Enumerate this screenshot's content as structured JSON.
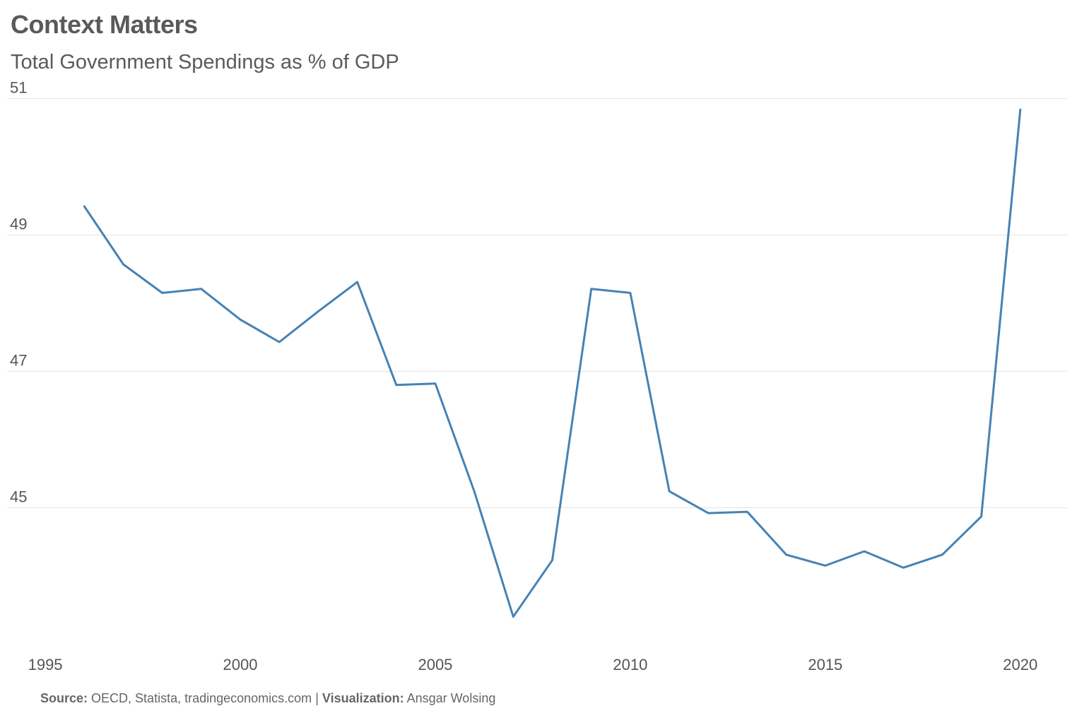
{
  "title": "Context Matters",
  "subtitle": "Total Government Spendings as % of GDP",
  "caption": {
    "source_label": "Source:",
    "source_text": "OECD, Statista, tradingeconomics.com",
    "separator": "|",
    "viz_label": "Visualization:",
    "viz_text": "Ansgar Wolsing"
  },
  "colors": {
    "line": "#4682b4",
    "grid": "#e3e3e3",
    "text": "#555555"
  },
  "chart_data": {
    "type": "line",
    "title": "Context Matters",
    "subtitle": "Total Government Spendings as % of GDP",
    "xlabel": "",
    "ylabel": "",
    "xlim": [
      1994.6,
      2021.2
    ],
    "ylim": [
      43.2,
      51.1
    ],
    "x_ticks": [
      1995,
      2000,
      2005,
      2010,
      2015,
      2020
    ],
    "x_tick_labels": [
      "1995",
      "2000",
      "2005",
      "2010",
      "2015",
      "2020"
    ],
    "y_ticks": [
      45,
      47,
      49,
      51
    ],
    "y_tick_labels": [
      "45",
      "47",
      "49",
      "51"
    ],
    "grid": true,
    "series": [
      {
        "name": "Total Government Spendings as % of GDP",
        "x": [
          1996,
          1997,
          1998,
          1999,
          2000,
          2001,
          2002,
          2003,
          2004,
          2005,
          2006,
          2007,
          2008,
          2009,
          2010,
          2011,
          2012,
          2013,
          2014,
          2015,
          2016,
          2017,
          2018,
          2019,
          2020
        ],
        "values": [
          49.42,
          48.57,
          48.15,
          48.21,
          47.76,
          47.43,
          47.88,
          48.31,
          46.8,
          46.82,
          45.24,
          43.4,
          44.23,
          48.21,
          48.15,
          45.24,
          44.92,
          44.94,
          44.31,
          44.15,
          44.36,
          44.12,
          44.31,
          44.87,
          50.84
        ]
      }
    ]
  }
}
